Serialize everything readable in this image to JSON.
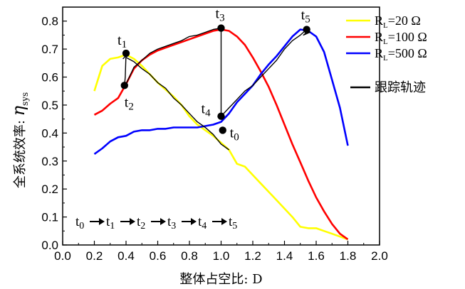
{
  "chart_data": {
    "type": "line",
    "xlabel": "整体占空比: D",
    "ylabel_prefix": "全系统效率:",
    "ylabel_symbol": "η",
    "ylabel_subscript": "sys",
    "xlim": [
      0.0,
      2.0
    ],
    "ylim": [
      0.0,
      0.85
    ],
    "x_ticks": [
      "0.0",
      "0.2",
      "0.4",
      "0.6",
      "0.8",
      "1.0",
      "1.2",
      "1.4",
      "1.6",
      "1.8",
      "2.0"
    ],
    "y_ticks": [
      "0.0",
      "0.1",
      "0.2",
      "0.3",
      "0.4",
      "0.5",
      "0.6",
      "0.7",
      "0.8"
    ],
    "grid": false,
    "legend_position": "top-right",
    "series": [
      {
        "name": "R",
        "name_sub": "L",
        "name_rest": "=20 Ω",
        "color": "#ffff00",
        "x": [
          0.2,
          0.25,
          0.3,
          0.35,
          0.4,
          0.45,
          0.5,
          0.55,
          0.6,
          0.65,
          0.7,
          0.75,
          0.8,
          0.85,
          0.9,
          0.95,
          1.0,
          1.05,
          1.1,
          1.15,
          1.2,
          1.25,
          1.3,
          1.35,
          1.4,
          1.45,
          1.5,
          1.55,
          1.6,
          1.65,
          1.7,
          1.75,
          1.8
        ],
        "y": [
          0.55,
          0.64,
          0.665,
          0.67,
          0.68,
          0.665,
          0.64,
          0.61,
          0.58,
          0.555,
          0.53,
          0.5,
          0.46,
          0.43,
          0.41,
          0.39,
          0.365,
          0.34,
          0.29,
          0.28,
          0.25,
          0.22,
          0.19,
          0.16,
          0.13,
          0.1,
          0.065,
          0.06,
          0.06,
          0.05,
          0.04,
          0.03,
          0.02
        ]
      },
      {
        "name": "R",
        "name_sub": "L",
        "name_rest": "=100 Ω",
        "color": "#ff0000",
        "x": [
          0.2,
          0.25,
          0.3,
          0.35,
          0.4,
          0.45,
          0.5,
          0.55,
          0.6,
          0.65,
          0.7,
          0.75,
          0.8,
          0.85,
          0.9,
          0.95,
          1.0,
          1.05,
          1.1,
          1.15,
          1.2,
          1.25,
          1.3,
          1.35,
          1.4,
          1.45,
          1.5,
          1.55,
          1.6,
          1.65,
          1.7,
          1.75,
          1.8
        ],
        "y": [
          0.465,
          0.48,
          0.505,
          0.525,
          0.575,
          0.63,
          0.66,
          0.68,
          0.695,
          0.705,
          0.715,
          0.725,
          0.735,
          0.745,
          0.755,
          0.765,
          0.77,
          0.765,
          0.745,
          0.715,
          0.67,
          0.62,
          0.565,
          0.5,
          0.43,
          0.36,
          0.295,
          0.23,
          0.17,
          0.12,
          0.075,
          0.04,
          0.02
        ]
      },
      {
        "name": "R",
        "name_sub": "L",
        "name_rest": "=500 Ω",
        "color": "#0000ff",
        "x": [
          0.2,
          0.25,
          0.3,
          0.35,
          0.4,
          0.45,
          0.5,
          0.55,
          0.6,
          0.65,
          0.7,
          0.75,
          0.8,
          0.85,
          0.9,
          0.95,
          1.0,
          1.05,
          1.1,
          1.15,
          1.2,
          1.25,
          1.3,
          1.35,
          1.4,
          1.45,
          1.5,
          1.55,
          1.6,
          1.65,
          1.7,
          1.75,
          1.8
        ],
        "y": [
          0.325,
          0.345,
          0.37,
          0.385,
          0.39,
          0.405,
          0.41,
          0.41,
          0.415,
          0.415,
          0.42,
          0.42,
          0.42,
          0.42,
          0.425,
          0.43,
          0.44,
          0.47,
          0.51,
          0.54,
          0.57,
          0.61,
          0.645,
          0.675,
          0.71,
          0.745,
          0.77,
          0.765,
          0.745,
          0.69,
          0.59,
          0.49,
          0.355
        ]
      }
    ],
    "tracking": {
      "name": "跟踪轨迹",
      "color": "#000000",
      "x": [
        0.38,
        0.39,
        0.4,
        0.395,
        0.39,
        0.4,
        0.45,
        0.5,
        0.55,
        0.6,
        0.65,
        0.7,
        0.75,
        0.8,
        0.85,
        0.9,
        0.95,
        1.0,
        1.0,
        1.0,
        1.0,
        1.05,
        1.1,
        1.15,
        1.2,
        1.25,
        1.3,
        1.35,
        1.4,
        1.45,
        1.5,
        1.53,
        1.55,
        1.56,
        1.52,
        1.56
      ],
      "y": [
        0.665,
        0.67,
        0.685,
        0.6,
        0.57,
        0.575,
        0.635,
        0.66,
        0.685,
        0.7,
        0.71,
        0.72,
        0.73,
        0.745,
        0.75,
        0.76,
        0.77,
        0.775,
        0.62,
        0.5,
        0.46,
        0.49,
        0.52,
        0.55,
        0.57,
        0.6,
        0.63,
        0.66,
        0.7,
        0.73,
        0.75,
        0.765,
        0.77,
        0.76,
        0.75,
        0.77
      ],
      "branch_x": [
        0.4,
        0.45,
        0.5,
        0.55,
        0.6,
        0.65,
        0.7,
        0.75,
        0.8,
        0.85,
        0.9,
        0.95,
        1.0,
        1.05
      ],
      "branch_y": [
        0.67,
        0.655,
        0.63,
        0.61,
        0.58,
        0.56,
        0.525,
        0.5,
        0.47,
        0.44,
        0.42,
        0.395,
        0.36,
        0.34
      ]
    },
    "points": [
      {
        "label": "t",
        "sub": "1",
        "x": 0.4,
        "y": 0.685
      },
      {
        "label": "t",
        "sub": "2",
        "x": 0.39,
        "y": 0.57
      },
      {
        "label": "t",
        "sub": "3",
        "x": 1.0,
        "y": 0.775
      },
      {
        "label": "t",
        "sub": "4",
        "x": 1.0,
        "y": 0.46
      },
      {
        "label": "t",
        "sub": "0",
        "x": 1.01,
        "y": 0.41
      },
      {
        "label": "t",
        "sub": "5",
        "x": 1.54,
        "y": 0.77
      }
    ],
    "sequence": [
      "t0",
      "t1",
      "t2",
      "t3",
      "t4",
      "t5"
    ]
  }
}
